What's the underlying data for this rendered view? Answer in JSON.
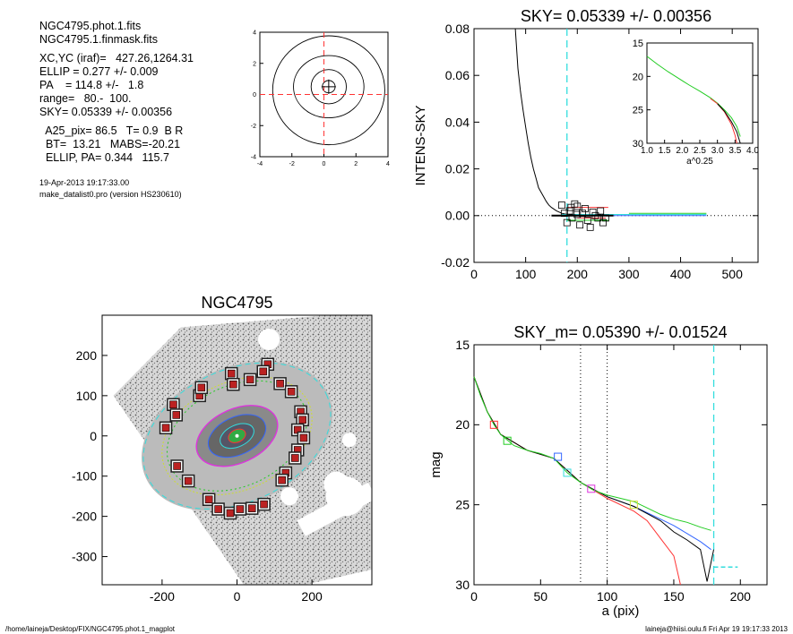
{
  "info": {
    "lines": [
      "NGC4795.phot.1.fits",
      "NGC4795.1.finmask.fits",
      "",
      "XC,YC (iraf)=   427.26,1264.31",
      "ELLIP = 0.277 +/- 0.009",
      "PA    = 114.8 +/-   1.8",
      "range=   80.-  100.",
      "SKY= 0.05339 +/- 0.00356",
      "",
      "  A25_pix= 86.5   T= 0.9  B R",
      "  BT=  13.21   MABS=-20.21",
      "  ELLIP, PA= 0.344   115.7"
    ],
    "date": "19-Apr-2013 19:17:33.00",
    "program": "make_datalist0.pro (version HS230610)"
  },
  "footer": {
    "left": "/home/laineja/Desktop/FIX/NGC4795.phot.1_magplot",
    "right": "laineja@hiisi.oulu.fi  Fri Apr 19 19:17:33 2013"
  },
  "colors": {
    "red": "#ff3333",
    "green": "#22cc22",
    "cyan": "#33dddd",
    "blue": "#3366ff",
    "magenta": "#dd33dd",
    "yellow": "#ccdd33",
    "black": "#000000"
  },
  "chart_data": [
    {
      "id": "contour",
      "type": "line",
      "title": "",
      "xlim": [
        -4,
        4
      ],
      "ylim": [
        -4,
        4
      ],
      "xticks": [
        "-4",
        "-2",
        "0",
        "2",
        "4"
      ],
      "yticks": [
        "-4",
        "-2",
        "0",
        "2",
        "4"
      ]
    },
    {
      "id": "sky",
      "type": "line",
      "title": "SKY= 0.05339 +/- 0.00356",
      "xlabel": "",
      "ylabel": "INTENS-SKY",
      "xlim": [
        0,
        550
      ],
      "ylim": [
        -0.02,
        0.08
      ],
      "xticks": [
        "0",
        "100",
        "200",
        "300",
        "400",
        "500"
      ],
      "yticks": [
        "-0.02",
        "0.00",
        "0.02",
        "0.04",
        "0.06",
        "0.08"
      ],
      "vline_x": 180,
      "profile": [
        [
          80,
          0.08
        ],
        [
          85,
          0.063
        ],
        [
          90,
          0.053
        ],
        [
          95,
          0.045
        ],
        [
          100,
          0.038
        ],
        [
          105,
          0.031
        ],
        [
          110,
          0.025
        ],
        [
          115,
          0.02
        ],
        [
          120,
          0.016
        ],
        [
          125,
          0.012
        ],
        [
          130,
          0.01
        ],
        [
          135,
          0.008
        ],
        [
          140,
          0.006
        ],
        [
          145,
          0.0045
        ],
        [
          150,
          0.0035
        ],
        [
          160,
          0.002
        ],
        [
          170,
          0.001
        ],
        [
          180,
          0.0005
        ],
        [
          200,
          0.0002
        ],
        [
          220,
          0.0001
        ],
        [
          260,
          0.0
        ]
      ],
      "squares": [
        [
          170,
          0.0045
        ],
        [
          175,
          0.001
        ],
        [
          180,
          -0.003
        ],
        [
          185,
          0.002
        ],
        [
          190,
          -0.001
        ],
        [
          195,
          0.005
        ],
        [
          200,
          0.004
        ],
        [
          205,
          -0.004
        ],
        [
          210,
          0.001
        ],
        [
          215,
          0.003
        ],
        [
          220,
          -0.002
        ],
        [
          225,
          -0.005
        ],
        [
          230,
          0.0015
        ],
        [
          235,
          0.0
        ],
        [
          240,
          -0.001
        ],
        [
          245,
          0.002
        ],
        [
          250,
          -0.003
        ],
        [
          255,
          -0.001
        ],
        [
          200,
          0.0005
        ],
        [
          188,
          0.0035
        ]
      ],
      "inset": {
        "xlim": [
          1.0,
          4.0
        ],
        "ylim": [
          15,
          30
        ],
        "xticks": [
          "1.0",
          "1.5",
          "2.0",
          "2.5",
          "3.0",
          "3.5",
          "4.0"
        ],
        "yticks": [
          "15",
          "20",
          "25",
          "30"
        ],
        "xlabel": "a^0.25",
        "green": [
          [
            1.0,
            17.0
          ],
          [
            1.3,
            18.2
          ],
          [
            1.6,
            19.3
          ],
          [
            1.9,
            20.3
          ],
          [
            2.2,
            21.3
          ],
          [
            2.5,
            22.2
          ],
          [
            2.8,
            23.2
          ],
          [
            3.0,
            24.0
          ],
          [
            3.2,
            25.0
          ],
          [
            3.4,
            26.2
          ],
          [
            3.55,
            27.5
          ],
          [
            3.65,
            29.0
          ]
        ],
        "red": [
          [
            2.8,
            23.3
          ],
          [
            3.0,
            24.1
          ],
          [
            3.2,
            25.3
          ],
          [
            3.4,
            27.2
          ],
          [
            3.5,
            28.8
          ],
          [
            3.55,
            30.0
          ]
        ],
        "black": [
          [
            3.0,
            24.1
          ],
          [
            3.2,
            25.2
          ],
          [
            3.4,
            26.8
          ],
          [
            3.55,
            28.3
          ],
          [
            3.65,
            30.0
          ]
        ]
      }
    },
    {
      "id": "image",
      "type": "scatter",
      "title": "NGC4795",
      "xlim": [
        -360,
        360
      ],
      "ylim": [
        -370,
        300
      ],
      "xticks": [
        "-200",
        "0",
        "200"
      ],
      "yticks": [
        "-300",
        "-200",
        "-100",
        "0",
        "100",
        "200"
      ],
      "masks": [
        [
          -170,
          78
        ],
        [
          -162,
          52
        ],
        [
          -190,
          20
        ],
        [
          -160,
          -75
        ],
        [
          -130,
          -112
        ],
        [
          -100,
          100
        ],
        [
          -95,
          120
        ],
        [
          -15,
          155
        ],
        [
          -10,
          128
        ],
        [
          35,
          140
        ],
        [
          82,
          178
        ],
        [
          70,
          160
        ],
        [
          115,
          130
        ],
        [
          145,
          110
        ],
        [
          170,
          60
        ],
        [
          175,
          40
        ],
        [
          162,
          15
        ],
        [
          178,
          -5
        ],
        [
          162,
          -35
        ],
        [
          155,
          -55
        ],
        [
          130,
          -92
        ],
        [
          120,
          -110
        ],
        [
          -75,
          -158
        ],
        [
          -50,
          -182
        ],
        [
          -18,
          -192
        ],
        [
          8,
          -182
        ],
        [
          40,
          -180
        ],
        [
          72,
          -170
        ]
      ],
      "mask_scale": 1.0
    },
    {
      "id": "mag",
      "type": "line",
      "title": "SKY_m=  0.05390 +/- 0.01524",
      "xlabel": "a (pix)",
      "ylabel": "mag",
      "xlim": [
        0,
        220
      ],
      "ylim": [
        15,
        30
      ],
      "xticks": [
        "0",
        "50",
        "100",
        "150",
        "200"
      ],
      "yticks": [
        "15",
        "20",
        "25",
        "30"
      ],
      "vlines_dotted": [
        80,
        100
      ],
      "vline_cyan": 180,
      "green": [
        [
          0,
          17.0
        ],
        [
          5,
          18.2
        ],
        [
          10,
          19.2
        ],
        [
          15,
          20.0
        ],
        [
          20,
          20.6
        ],
        [
          30,
          21.3
        ],
        [
          40,
          21.6
        ],
        [
          50,
          21.8
        ],
        [
          60,
          22.1
        ],
        [
          70,
          23.0
        ],
        [
          80,
          23.6
        ],
        [
          90,
          24.1
        ],
        [
          100,
          24.4
        ],
        [
          110,
          24.6
        ],
        [
          120,
          24.8
        ],
        [
          130,
          25.2
        ],
        [
          140,
          25.6
        ],
        [
          150,
          25.9
        ],
        [
          160,
          26.1
        ],
        [
          170,
          26.4
        ],
        [
          178,
          26.6
        ]
      ],
      "black": [
        [
          0,
          17.0
        ],
        [
          10,
          19.2
        ],
        [
          20,
          20.6
        ],
        [
          40,
          21.6
        ],
        [
          60,
          22.1
        ],
        [
          80,
          23.6
        ],
        [
          100,
          24.5
        ],
        [
          120,
          25.1
        ],
        [
          140,
          26.0
        ],
        [
          150,
          26.7
        ],
        [
          160,
          27.2
        ],
        [
          170,
          27.8
        ],
        [
          175,
          29.8
        ],
        [
          180,
          27.8
        ]
      ],
      "red": [
        [
          0,
          17.0
        ],
        [
          10,
          19.2
        ],
        [
          20,
          20.6
        ],
        [
          40,
          21.6
        ],
        [
          60,
          22.1
        ],
        [
          80,
          23.6
        ],
        [
          100,
          24.6
        ],
        [
          120,
          25.4
        ],
        [
          130,
          26.0
        ],
        [
          140,
          27.1
        ],
        [
          150,
          28.2
        ],
        [
          155,
          30.0
        ]
      ],
      "blue": [
        [
          100,
          24.5
        ],
        [
          120,
          25.1
        ],
        [
          140,
          25.9
        ],
        [
          150,
          26.3
        ],
        [
          160,
          26.8
        ],
        [
          170,
          27.3
        ],
        [
          178,
          27.8
        ]
      ],
      "squares": [
        {
          "x": 15,
          "y": 20.0,
          "c": "red"
        },
        {
          "x": 25,
          "y": 21.0,
          "c": "green"
        },
        {
          "x": 63,
          "y": 22.0,
          "c": "blue"
        },
        {
          "x": 70,
          "y": 23.0,
          "c": "cyan"
        },
        {
          "x": 88,
          "y": 24.0,
          "c": "magenta"
        },
        {
          "x": 120,
          "y": 25.0,
          "c": "yellow"
        }
      ],
      "sky_dash": [
        [
          180,
          28.9
        ],
        [
          198,
          28.9
        ]
      ]
    }
  ]
}
